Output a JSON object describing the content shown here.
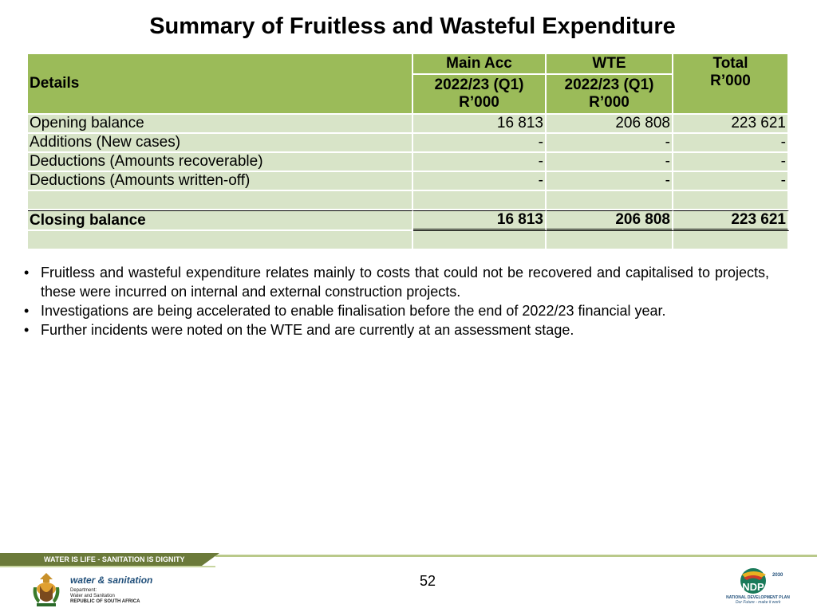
{
  "title": "Summary of Fruitless and Wasteful Expenditure",
  "table": {
    "header_details": "Details",
    "header_main_acc": "Main Acc",
    "header_wte": "WTE",
    "header_total_line1": "Total",
    "header_total_line2": "R’000",
    "period_main_line1": "2022/23 (Q1)",
    "period_main_line2": "R’000",
    "period_wte_line1": "2022/23 (Q1)",
    "period_wte_line2": "R’000",
    "rows": [
      {
        "label": "Opening balance",
        "main": "16 813",
        "wte": "206 808",
        "total": "223 621"
      },
      {
        "label": "Additions (New cases)",
        "main": "-",
        "wte": "-",
        "total": "-"
      },
      {
        "label": "Deductions (Amounts recoverable)",
        "main": "-",
        "wte": "-",
        "total": "-"
      },
      {
        "label": "Deductions (Amounts written-off)",
        "main": "-",
        "wte": "-",
        "total": "-"
      }
    ],
    "closing": {
      "label": "Closing balance",
      "main": "16 813",
      "wte": "206 808",
      "total": "223 621"
    }
  },
  "bullets": [
    "Fruitless and wasteful expenditure relates mainly to costs that could not be recovered and capitalised to projects, these were incurred on internal and external construction projects.",
    "Investigations are being accelerated to enable finalisation before the end of 2022/23 financial year.",
    "Further incidents were noted on the WTE and are currently at an assessment stage."
  ],
  "bullet_glyph": "•",
  "footer": {
    "slogan": "WATER IS LIFE - SANITATION IS DIGNITY",
    "page_number": "52",
    "dws_name": "water & sanitation",
    "dws_line1": "Department:",
    "dws_line2": "Water and Sanitation",
    "dws_line3": "REPUBLIC OF SOUTH AFRICA",
    "ndp_name": "NATIONAL DEVELOPMENT PLAN",
    "ndp_tagline": "Our Future - make it work",
    "ndp_year": "2030",
    "ndp_mark": "NDP"
  },
  "colors": {
    "header_green": "#9bbb59",
    "row_green": "#d8e4c8",
    "footer_olive": "#6b7a3a"
  }
}
